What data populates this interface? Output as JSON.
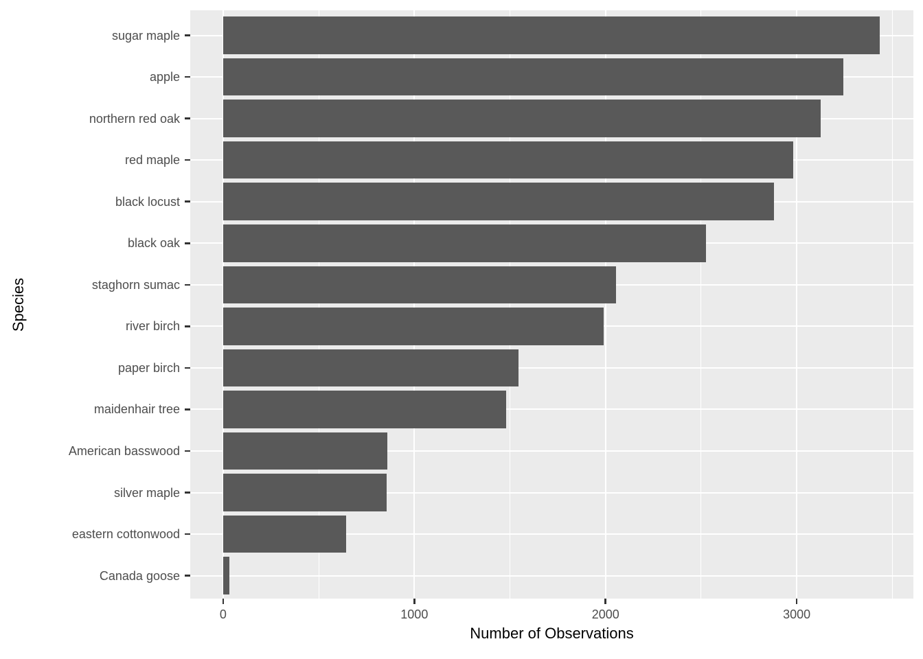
{
  "chart_data": {
    "type": "bar",
    "orientation": "horizontal",
    "title": "",
    "xlabel": "Number of Observations",
    "ylabel": "Species",
    "categories": [
      "sugar maple",
      "apple",
      "northern red oak",
      "red maple",
      "black locust",
      "black oak",
      "staghorn sumac",
      "river birch",
      "paper birch",
      "maidenhair tree",
      "American basswood",
      "silver maple",
      "eastern cottonwood",
      "Canada goose"
    ],
    "values": [
      3435,
      3245,
      3125,
      2980,
      2880,
      2525,
      2055,
      1990,
      1545,
      1480,
      860,
      856,
      643,
      33
    ],
    "xlim": [
      -172,
      3610
    ],
    "x_major_ticks": [
      0,
      1000,
      2000,
      3000
    ],
    "x_major_tick_labels": [
      "0",
      "1000",
      "2000",
      "3000"
    ],
    "x_minor_ticks": [
      500,
      1500,
      2500,
      3500
    ],
    "grid": "white major and minor gridlines on grey panel",
    "legend_position": "none",
    "colors": {
      "bar_fill": "#595959",
      "panel_background": "#EBEBEB",
      "gridline": "#FFFFFF",
      "axis_text": "#4D4D4D",
      "axis_title": "#000000",
      "tick_mark": "#333333",
      "plot_background": "#FFFFFF"
    }
  }
}
